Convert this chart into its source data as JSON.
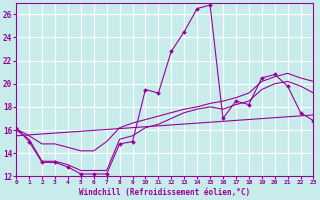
{
  "background_color": "#c8ecec",
  "grid_color": "#ffffff",
  "line_color": "#990099",
  "xlabel": "Windchill (Refroidissement éolien,°C)",
  "xlim": [
    0,
    23
  ],
  "ylim": [
    12,
    27
  ],
  "xticks": [
    0,
    1,
    2,
    3,
    4,
    5,
    6,
    7,
    8,
    9,
    10,
    11,
    12,
    13,
    14,
    15,
    16,
    17,
    18,
    19,
    20,
    21,
    22,
    23
  ],
  "yticks": [
    12,
    14,
    16,
    18,
    20,
    22,
    24,
    26
  ],
  "curve1_x": [
    0,
    1,
    2,
    3,
    4,
    5,
    6,
    7,
    8,
    9,
    10,
    11,
    12,
    13,
    14,
    15,
    16,
    17,
    18,
    19,
    20,
    21,
    22,
    23
  ],
  "curve1_y": [
    16.2,
    15.0,
    13.2,
    13.2,
    12.8,
    12.2,
    12.2,
    12.2,
    14.8,
    15.0,
    19.5,
    19.2,
    22.8,
    24.5,
    26.5,
    26.8,
    17.0,
    18.5,
    18.2,
    20.5,
    20.8,
    19.8,
    17.5,
    16.8
  ],
  "curve2_x": [
    0,
    1,
    2,
    3,
    4,
    5,
    6,
    7,
    8,
    9,
    10,
    11,
    12,
    13,
    14,
    15,
    16,
    17,
    18,
    19,
    20,
    21,
    22,
    23
  ],
  "curve2_y": [
    16.0,
    15.2,
    13.3,
    13.3,
    13.0,
    12.5,
    12.5,
    12.5,
    15.2,
    15.5,
    16.2,
    16.5,
    17.0,
    17.5,
    17.8,
    18.0,
    17.8,
    18.2,
    18.5,
    19.5,
    20.0,
    20.2,
    19.8,
    19.2
  ],
  "curve3_x": [
    0,
    1,
    2,
    3,
    4,
    5,
    6,
    7,
    8,
    9,
    10,
    11,
    12,
    13,
    14,
    15,
    16,
    17,
    18,
    19,
    20,
    21,
    22,
    23
  ],
  "curve3_y": [
    16.1,
    15.5,
    14.8,
    14.8,
    14.5,
    14.2,
    14.2,
    15.0,
    16.2,
    16.6,
    16.9,
    17.2,
    17.5,
    17.8,
    18.0,
    18.3,
    18.5,
    18.8,
    19.2,
    20.2,
    20.6,
    20.9,
    20.5,
    20.2
  ],
  "curve4_x": [
    0,
    23
  ],
  "curve4_y": [
    15.5,
    17.3
  ]
}
